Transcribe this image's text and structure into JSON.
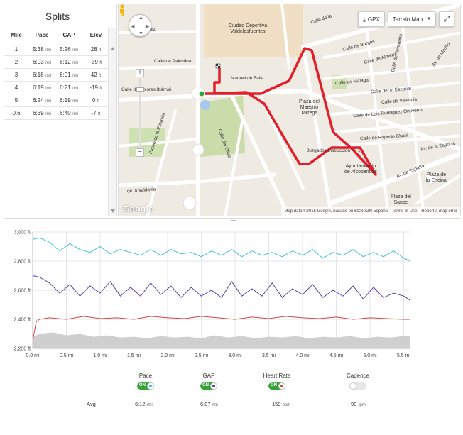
{
  "splits": {
    "title": "Splits",
    "headers": [
      "Mile",
      "Pace",
      "GAP",
      "Elev"
    ],
    "rows": [
      {
        "mile": "1",
        "pace": "5:38",
        "gap": "5:26",
        "elev": "28"
      },
      {
        "mile": "2",
        "pace": "6:03",
        "gap": "6:12",
        "elev": "-39"
      },
      {
        "mile": "3",
        "pace": "6:18",
        "gap": "6:01",
        "elev": "42"
      },
      {
        "mile": "4",
        "pace": "6:19",
        "gap": "6:21",
        "elev": "-19"
      },
      {
        "mile": "5",
        "pace": "6:24",
        "gap": "6:19",
        "elev": "0"
      },
      {
        "mile": "0.6",
        "pace": "6:39",
        "gap": "6:40",
        "elev": "-7"
      }
    ],
    "pace_unit": "/mi",
    "elev_unit": "ft"
  },
  "map": {
    "toolbar": {
      "gpx_label": "GPX",
      "terrain_label": "Terrain Map",
      "fullscreen_icon": "expand-icon"
    },
    "labels": {
      "street_luiz": "Luiz",
      "ciudad_deportiva": "Ciudad Deportiva\nValdelasfuentes",
      "calle_palestina": "Calle de Palestina",
      "manuel_falla": "Manuel de Falla",
      "calle_dolores": "Calle de Dolores Ibárruri",
      "calle_burgos": "Calle de Burgos",
      "calle_almeria": "Calle de Almería",
      "calle_malaga": "Calle de Malaga",
      "calle_escorial": "Calle del el Escorial",
      "calle_valencia": "Calle de Valencia",
      "calle_luis": "Calle de Luis Rodríguez Ontiveros",
      "calle_ruperto": "Calle de Ruperto Chapí",
      "plaza_maestro": "Plaza del\nMaestro\nTarrega",
      "juzgados": "Juzgados Instrucción Nº 1",
      "ayuntamiento": "Ayuntamiento\nde Alcobendas",
      "av_espana": "Av. de España",
      "av_zaporra": "Av. de la Zaporra",
      "plaza_encina": "Plaza de\nla Encina",
      "plaza_sauce": "Plaza del\nSauce",
      "paseo_estacion": "Paseo de la Estación",
      "calle_olivar": "Calle del Olivar",
      "calle_valdavia": "de la Valdavia",
      "calle_tarragona": "Calle de Tarragona",
      "calle_madrid": "Av. de Madrid",
      "calle_de_la": "Calle de la"
    },
    "google_logo": "Google",
    "attribution": {
      "map_data": "Map data ©2015 Google, basado en BCN IGN España",
      "terms": "Terms of Use",
      "report": "Report a map error"
    }
  },
  "chart_data": {
    "type": "line",
    "x_unit": "mi",
    "xlim": [
      0,
      5.6
    ],
    "x_ticks": [
      "0.0 mi",
      "0.5 mi",
      "1.0 mi",
      "1.5 mi",
      "2.0 mi",
      "2.5 mi",
      "3.0 mi",
      "3.5 mi",
      "4.0 mi",
      "4.5 mi",
      "5.0 mi",
      "5.5 mi"
    ],
    "y_unit": "ft",
    "ylim": [
      2200,
      3000
    ],
    "y_ticks": [
      "2,200 ft",
      "2,400 ft",
      "2,600 ft",
      "2,800 ft",
      "3,000 ft"
    ],
    "grid": true,
    "series": [
      {
        "name": "Pace",
        "color": "#3ec2d8",
        "x": [
          0.0,
          0.1,
          0.25,
          0.4,
          0.55,
          0.7,
          0.85,
          1.0,
          1.15,
          1.3,
          1.45,
          1.6,
          1.75,
          1.9,
          2.05,
          2.2,
          2.35,
          2.5,
          2.65,
          2.8,
          2.95,
          3.1,
          3.25,
          3.4,
          3.55,
          3.7,
          3.85,
          4.0,
          4.15,
          4.3,
          4.45,
          4.6,
          4.75,
          4.9,
          5.05,
          5.2,
          5.35,
          5.5,
          5.6
        ],
        "values": [
          2950,
          2960,
          2930,
          2870,
          2920,
          2880,
          2860,
          2900,
          2850,
          2880,
          2860,
          2840,
          2880,
          2840,
          2880,
          2850,
          2860,
          2830,
          2870,
          2840,
          2880,
          2830,
          2870,
          2840,
          2860,
          2830,
          2870,
          2840,
          2880,
          2820,
          2860,
          2840,
          2880,
          2830,
          2860,
          2830,
          2870,
          2820,
          2800
        ]
      },
      {
        "name": "GAP",
        "color": "#5b3fae",
        "x": [
          0.0,
          0.1,
          0.25,
          0.4,
          0.55,
          0.7,
          0.85,
          1.0,
          1.15,
          1.3,
          1.45,
          1.6,
          1.75,
          1.9,
          2.05,
          2.2,
          2.35,
          2.5,
          2.65,
          2.8,
          2.95,
          3.1,
          3.25,
          3.4,
          3.55,
          3.7,
          3.85,
          4.0,
          4.15,
          4.3,
          4.45,
          4.6,
          4.75,
          4.9,
          5.05,
          5.2,
          5.35,
          5.5,
          5.6
        ],
        "values": [
          2700,
          2690,
          2650,
          2580,
          2640,
          2560,
          2630,
          2580,
          2660,
          2560,
          2620,
          2560,
          2650,
          2570,
          2630,
          2550,
          2620,
          2560,
          2600,
          2550,
          2660,
          2560,
          2610,
          2560,
          2650,
          2550,
          2610,
          2570,
          2640,
          2550,
          2600,
          2560,
          2630,
          2540,
          2620,
          2550,
          2580,
          2560,
          2530
        ]
      },
      {
        "name": "Heart Rate",
        "color": "#d64545",
        "x": [
          0.0,
          0.05,
          0.1,
          0.25,
          0.5,
          0.75,
          1.0,
          1.25,
          1.5,
          1.75,
          2.0,
          2.25,
          2.5,
          2.75,
          3.0,
          3.25,
          3.5,
          3.75,
          4.0,
          4.25,
          4.5,
          4.75,
          5.0,
          5.25,
          5.5,
          5.6
        ],
        "values": [
          2250,
          2380,
          2400,
          2410,
          2400,
          2420,
          2405,
          2410,
          2400,
          2420,
          2410,
          2405,
          2420,
          2410,
          2400,
          2415,
          2405,
          2420,
          2410,
          2405,
          2415,
          2400,
          2410,
          2405,
          2400,
          2400
        ]
      },
      {
        "name": "Elevation",
        "color": "#cfcfcf",
        "x": [
          0.0,
          0.1,
          0.3,
          0.5,
          0.7,
          0.9,
          1.1,
          1.3,
          1.5,
          1.7,
          1.9,
          2.1,
          2.3,
          2.5,
          2.7,
          2.9,
          3.1,
          3.3,
          3.5,
          3.7,
          3.9,
          4.1,
          4.3,
          4.5,
          4.7,
          4.9,
          5.1,
          5.3,
          5.5,
          5.6
        ],
        "values": [
          2280,
          2300,
          2310,
          2290,
          2300,
          2280,
          2290,
          2275,
          2280,
          2270,
          2285,
          2275,
          2280,
          2270,
          2290,
          2275,
          2285,
          2270,
          2280,
          2275,
          2285,
          2270,
          2280,
          2275,
          2285,
          2270,
          2280,
          2275,
          2285,
          2285
        ]
      }
    ]
  },
  "legend": {
    "items": [
      {
        "label": "Pace",
        "on": true,
        "color": "#3ec2d8",
        "toggle_text": "ON"
      },
      {
        "label": "GAP",
        "on": true,
        "color": "#5b3fae",
        "toggle_text": "ON"
      },
      {
        "label": "Heart Rate",
        "on": true,
        "color": "#d64545",
        "toggle_text": "ON"
      },
      {
        "label": "Cadence",
        "on": false,
        "color": "#cccccc",
        "toggle_text": ""
      }
    ],
    "avg_label": "Avg",
    "avg_values": [
      {
        "value": "6:12",
        "unit": "/mi"
      },
      {
        "value": "6:07",
        "unit": "/mi"
      },
      {
        "value": "159",
        "unit": "bpm"
      },
      {
        "value": "90",
        "unit": "rpm"
      }
    ]
  }
}
